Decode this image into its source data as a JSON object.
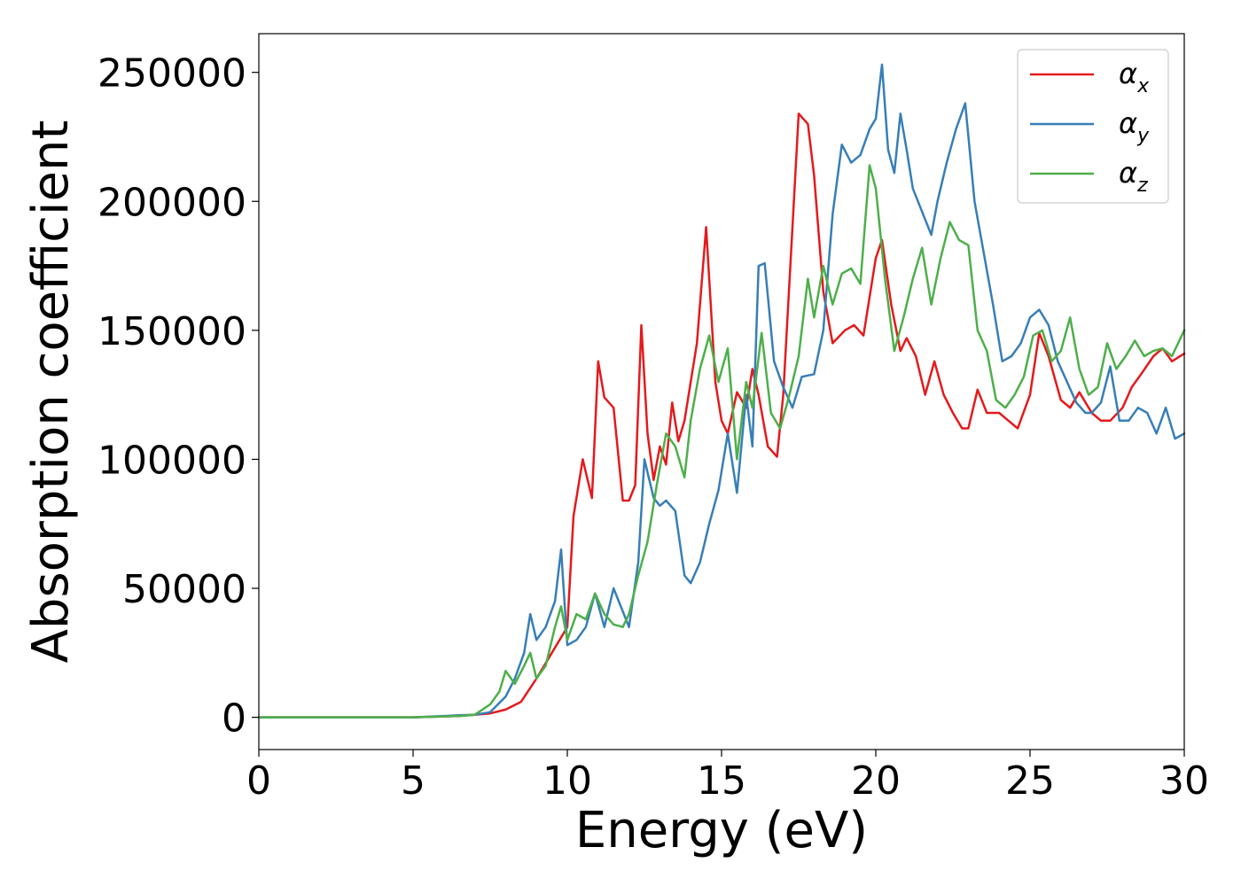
{
  "chart_data": {
    "type": "line",
    "title": "",
    "xlabel": "Energy (eV)",
    "ylabel": "Absorption coefficient",
    "xlim": [
      0,
      30
    ],
    "ylim": [
      -12500,
      265000
    ],
    "xticks": [
      0,
      5,
      10,
      15,
      20,
      25,
      30
    ],
    "xtick_labels": [
      "0",
      "5",
      "10",
      "15",
      "20",
      "25",
      "30"
    ],
    "yticks": [
      0,
      50000,
      100000,
      150000,
      200000,
      250000
    ],
    "ytick_labels": [
      "0",
      "50000",
      "100000",
      "150000",
      "200000",
      "250000"
    ],
    "grid": false,
    "legend_position": "top-right",
    "series": [
      {
        "name": "αx",
        "name_base": "α",
        "name_sub": "x",
        "color": "#e41a1c",
        "x": [
          0,
          5,
          6.5,
          7.5,
          8,
          8.5,
          9,
          9.5,
          10,
          10.2,
          10.5,
          10.8,
          11,
          11.2,
          11.5,
          11.8,
          12,
          12.2,
          12.4,
          12.6,
          12.8,
          13,
          13.2,
          13.4,
          13.6,
          13.8,
          14,
          14.2,
          14.5,
          14.8,
          15,
          15.2,
          15.5,
          15.8,
          16,
          16.2,
          16.5,
          16.8,
          17,
          17.3,
          17.5,
          17.8,
          18,
          18.3,
          18.6,
          19,
          19.3,
          19.6,
          20,
          20.2,
          20.5,
          20.8,
          21,
          21.3,
          21.6,
          21.9,
          22.2,
          22.5,
          22.8,
          23,
          23.3,
          23.6,
          24,
          24.3,
          24.6,
          25,
          25.3,
          25.6,
          26,
          26.3,
          26.6,
          27,
          27.3,
          27.6,
          28,
          28.3,
          28.6,
          29,
          29.3,
          29.6,
          30
        ],
        "y": [
          0,
          0,
          500,
          1500,
          3000,
          6000,
          15000,
          25000,
          35000,
          78000,
          100000,
          85000,
          138000,
          124000,
          120000,
          84000,
          84000,
          90000,
          152000,
          110000,
          92000,
          105000,
          98000,
          122000,
          107000,
          115000,
          130000,
          145000,
          190000,
          130000,
          115000,
          110000,
          126000,
          120000,
          135000,
          125000,
          105000,
          101000,
          125000,
          190000,
          234000,
          230000,
          210000,
          165000,
          145000,
          150000,
          152000,
          148000,
          178000,
          185000,
          160000,
          142000,
          147000,
          140000,
          125000,
          138000,
          125000,
          118000,
          112000,
          112000,
          127000,
          118000,
          118000,
          115000,
          112000,
          125000,
          149000,
          140000,
          123000,
          120000,
          126000,
          118000,
          115000,
          115000,
          120000,
          128000,
          133000,
          140000,
          143000,
          138000,
          141000
        ]
      },
      {
        "name": "αy",
        "name_base": "α",
        "name_sub": "y",
        "color": "#377eb8",
        "x": [
          0,
          5,
          6.5,
          7,
          7.5,
          8,
          8.3,
          8.6,
          8.8,
          9,
          9.3,
          9.6,
          9.8,
          10,
          10.3,
          10.6,
          10.9,
          11.2,
          11.5,
          12,
          12.3,
          12.5,
          12.8,
          13,
          13.2,
          13.5,
          13.8,
          14,
          14.3,
          14.6,
          14.9,
          15.2,
          15.5,
          15.8,
          16,
          16.2,
          16.4,
          16.7,
          17,
          17.3,
          17.6,
          18,
          18.3,
          18.6,
          18.9,
          19.2,
          19.5,
          19.8,
          20,
          20.2,
          20.4,
          20.6,
          20.8,
          21,
          21.2,
          21.5,
          21.8,
          22,
          22.3,
          22.6,
          22.9,
          23.2,
          23.5,
          23.8,
          24.1,
          24.4,
          24.7,
          25,
          25.3,
          25.6,
          25.9,
          26.2,
          26.5,
          26.8,
          27,
          27.3,
          27.6,
          27.9,
          28.2,
          28.5,
          28.8,
          29.1,
          29.4,
          29.7,
          30
        ],
        "y": [
          0,
          0,
          800,
          1000,
          2000,
          8000,
          15000,
          25000,
          40000,
          30000,
          35000,
          45000,
          65000,
          28000,
          30000,
          35000,
          48000,
          35000,
          50000,
          35000,
          60000,
          100000,
          85000,
          82000,
          84000,
          80000,
          55000,
          52000,
          60000,
          75000,
          88000,
          110000,
          87000,
          125000,
          105000,
          175000,
          176000,
          138000,
          128000,
          120000,
          132000,
          133000,
          150000,
          195000,
          222000,
          215000,
          218000,
          228000,
          232000,
          253000,
          220000,
          211000,
          234000,
          220000,
          205000,
          196000,
          187000,
          200000,
          215000,
          228000,
          238000,
          200000,
          180000,
          160000,
          138000,
          140000,
          145000,
          155000,
          158000,
          152000,
          138000,
          130000,
          122000,
          118000,
          118000,
          122000,
          136000,
          115000,
          115000,
          120000,
          118000,
          110000,
          120000,
          108000,
          110000
        ]
      },
      {
        "name": "αz",
        "name_base": "α",
        "name_sub": "z",
        "color": "#4daf4a",
        "x": [
          0,
          5,
          6.5,
          7,
          7.5,
          7.8,
          8,
          8.3,
          8.6,
          8.8,
          9,
          9.3,
          9.6,
          9.8,
          10,
          10.3,
          10.6,
          10.9,
          11.2,
          11.5,
          11.8,
          12,
          12.3,
          12.6,
          12.9,
          13.2,
          13.5,
          13.8,
          14,
          14.3,
          14.6,
          14.9,
          15.2,
          15.5,
          15.8,
          16,
          16.3,
          16.6,
          16.9,
          17.2,
          17.5,
          17.8,
          18,
          18.3,
          18.6,
          18.9,
          19.2,
          19.5,
          19.8,
          20,
          20.3,
          20.6,
          20.9,
          21.2,
          21.5,
          21.8,
          22.1,
          22.4,
          22.7,
          23,
          23.3,
          23.6,
          23.9,
          24.2,
          24.5,
          24.8,
          25.1,
          25.4,
          25.7,
          26,
          26.3,
          26.6,
          26.9,
          27.2,
          27.5,
          27.8,
          28.1,
          28.4,
          28.7,
          29,
          29.3,
          29.6,
          30
        ],
        "y": [
          0,
          0,
          500,
          1000,
          5000,
          10000,
          18000,
          13000,
          20000,
          25000,
          15000,
          20000,
          35000,
          43000,
          30000,
          40000,
          38000,
          48000,
          40000,
          36000,
          35000,
          40000,
          55000,
          68000,
          90000,
          110000,
          105000,
          93000,
          115000,
          135000,
          148000,
          130000,
          143000,
          100000,
          130000,
          120000,
          149000,
          118000,
          112000,
          125000,
          140000,
          170000,
          155000,
          175000,
          160000,
          172000,
          174000,
          168000,
          214000,
          205000,
          170000,
          142000,
          155000,
          170000,
          182000,
          160000,
          178000,
          192000,
          185000,
          183000,
          150000,
          142000,
          123000,
          120000,
          125000,
          132000,
          148000,
          150000,
          138000,
          142000,
          155000,
          135000,
          125000,
          128000,
          145000,
          135000,
          140000,
          146000,
          140000,
          142000,
          143000,
          140000,
          150000
        ]
      }
    ]
  }
}
